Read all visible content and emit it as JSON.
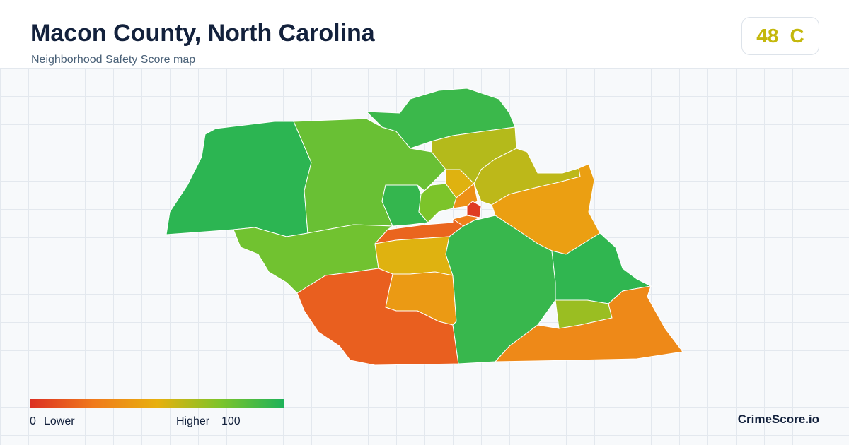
{
  "header": {
    "title": "Macon County, North Carolina",
    "subtitle": "Neighborhood Safety Score map"
  },
  "score": {
    "value": 48,
    "grade": "C",
    "color": "#c4b80c"
  },
  "legend": {
    "min": 0,
    "min_label": "Lower",
    "max_label": "Higher",
    "max": 100,
    "colors": [
      "#dc2f23",
      "#f07a1c",
      "#e8b00e",
      "#7cc42a",
      "#1db25a"
    ]
  },
  "regions": [
    {
      "score": 96
    },
    {
      "score": 80
    },
    {
      "score": 78
    },
    {
      "score": 92
    },
    {
      "score": 62
    },
    {
      "score": 60
    },
    {
      "score": 42
    },
    {
      "score": 94
    },
    {
      "score": 75
    },
    {
      "score": 52
    },
    {
      "score": 35
    },
    {
      "score": 4
    },
    {
      "score": 28
    },
    {
      "score": 18
    },
    {
      "score": 52
    },
    {
      "score": 40
    },
    {
      "score": 16
    },
    {
      "score": 93
    },
    {
      "score": 95
    },
    {
      "score": 68
    },
    {
      "score": 32
    }
  ],
  "brand": "CrimeScore.io"
}
